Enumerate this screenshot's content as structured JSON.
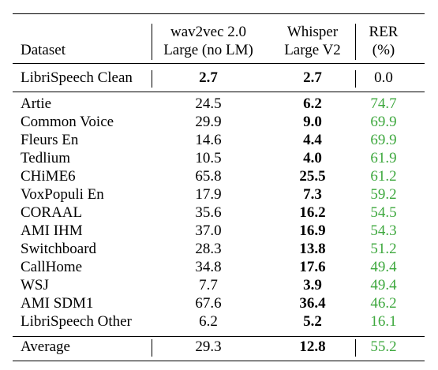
{
  "header": {
    "dataset": "Dataset",
    "w2v_line1": "wav2vec 2.0",
    "w2v_line2": "Large (no LM)",
    "whisper_line1": "Whisper",
    "whisper_line2": "Large V2",
    "rer_line1": "RER",
    "rer_line2": "(%)"
  },
  "clean": {
    "name": "LibriSpeech Clean",
    "w2v": "2.7",
    "whisper": "2.7",
    "rer": "0.0"
  },
  "rows": [
    {
      "name": "Artie",
      "w2v": "24.5",
      "whisper": "6.2",
      "rer": "74.7"
    },
    {
      "name": "Common Voice",
      "w2v": "29.9",
      "whisper": "9.0",
      "rer": "69.9"
    },
    {
      "name": "Fleurs En",
      "w2v": "14.6",
      "whisper": "4.4",
      "rer": "69.9"
    },
    {
      "name": "Tedlium",
      "w2v": "10.5",
      "whisper": "4.0",
      "rer": "61.9"
    },
    {
      "name": "CHiME6",
      "w2v": "65.8",
      "whisper": "25.5",
      "rer": "61.2"
    },
    {
      "name": "VoxPopuli En",
      "w2v": "17.9",
      "whisper": "7.3",
      "rer": "59.2"
    },
    {
      "name": "CORAAL",
      "w2v": "35.6",
      "whisper": "16.2",
      "rer": "54.5"
    },
    {
      "name": "AMI IHM",
      "w2v": "37.0",
      "whisper": "16.9",
      "rer": "54.3"
    },
    {
      "name": "Switchboard",
      "w2v": "28.3",
      "whisper": "13.8",
      "rer": "51.2"
    },
    {
      "name": "CallHome",
      "w2v": "34.8",
      "whisper": "17.6",
      "rer": "49.4"
    },
    {
      "name": "WSJ",
      "w2v": "7.7",
      "whisper": "3.9",
      "rer": "49.4"
    },
    {
      "name": "AMI SDM1",
      "w2v": "67.6",
      "whisper": "36.4",
      "rer": "46.2"
    },
    {
      "name": "LibriSpeech Other",
      "w2v": "6.2",
      "whisper": "5.2",
      "rer": "16.1"
    }
  ],
  "average": {
    "name": "Average",
    "w2v": "29.3",
    "whisper": "12.8",
    "rer": "55.2"
  },
  "colors": {
    "rer_highlight": "#3ea83e"
  }
}
